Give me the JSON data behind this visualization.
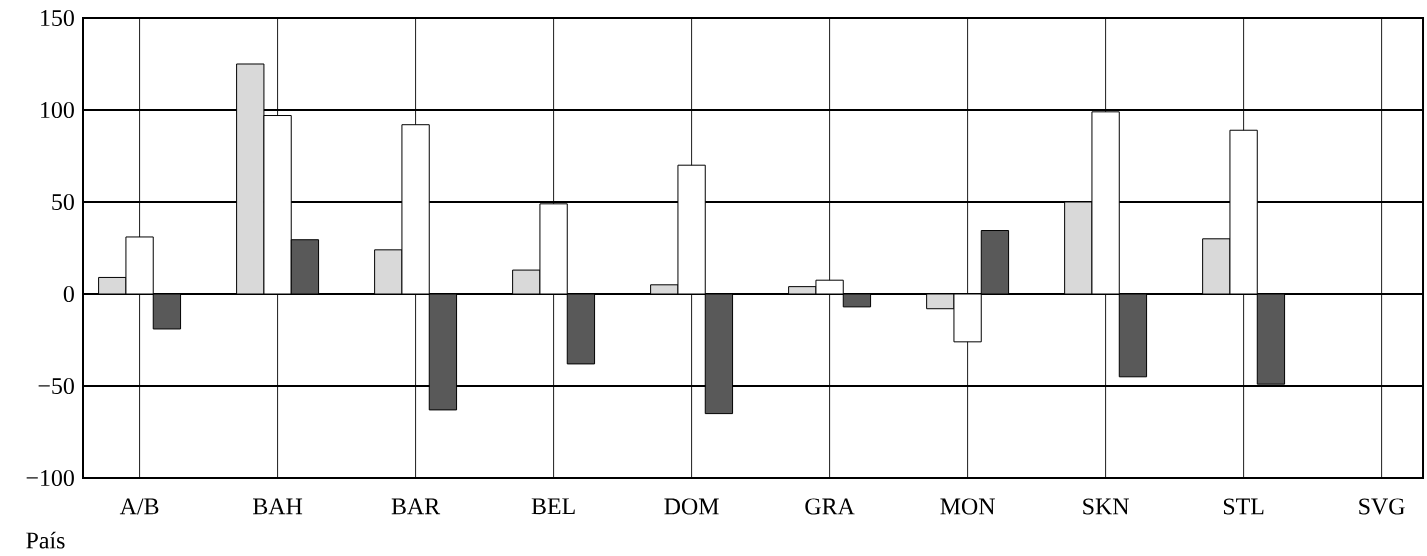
{
  "chart_data": {
    "type": "bar",
    "xlabel": "País",
    "categories": [
      "A/B",
      "BAH",
      "BAR",
      "BEL",
      "DOM",
      "GRA",
      "MON",
      "SKN",
      "STL",
      "SVG"
    ],
    "series": [
      {
        "color": "#d9d9d9",
        "values": [
          9,
          125,
          24,
          13,
          5,
          4,
          -8,
          50,
          30,
          null
        ]
      },
      {
        "color": "#ffffff",
        "values": [
          31,
          97,
          92,
          49,
          70,
          7.5,
          -26,
          99,
          89,
          null
        ]
      },
      {
        "color": "#595959",
        "values": [
          -19,
          29.5,
          -63,
          -38,
          -65,
          -7,
          34.5,
          -45,
          -49,
          null
        ]
      }
    ],
    "ylim": [
      -100,
      150
    ],
    "yticks": [
      {
        "value": -100,
        "label": "−100"
      },
      {
        "value": -50,
        "label": "−50"
      },
      0,
      50,
      100,
      150
    ],
    "grid": true
  }
}
